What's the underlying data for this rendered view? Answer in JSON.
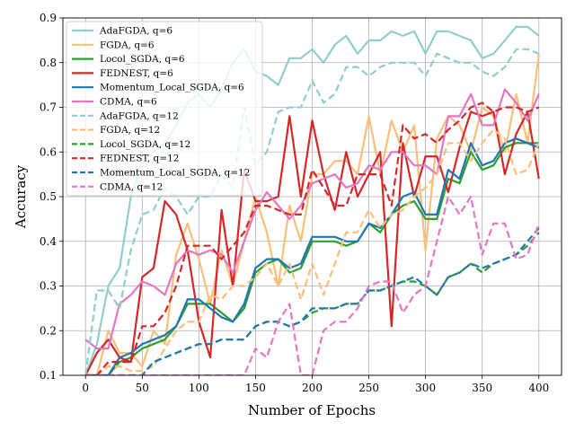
{
  "chart_data": {
    "type": "line",
    "title": "",
    "xlabel": "Number of Epochs",
    "ylabel": "Accuracy",
    "xlim": [
      -20,
      420
    ],
    "ylim": [
      0.1,
      0.9
    ],
    "xticks": [
      0,
      50,
      100,
      150,
      200,
      250,
      300,
      350,
      400
    ],
    "yticks": [
      0.1,
      0.2,
      0.3,
      0.4,
      0.5,
      0.6,
      0.7,
      0.8,
      0.9
    ],
    "xtick_labels": [
      "0",
      "50",
      "100",
      "150",
      "200",
      "250",
      "300",
      "350",
      "400"
    ],
    "ytick_labels": [
      "0.1",
      "0.2",
      "0.3",
      "0.4",
      "0.5",
      "0.6",
      "0.7",
      "0.8",
      "0.9"
    ],
    "grid": true,
    "legend_position": "top-left",
    "x": [
      0,
      10,
      20,
      30,
      40,
      50,
      60,
      70,
      80,
      90,
      100,
      110,
      120,
      130,
      140,
      150,
      160,
      170,
      180,
      190,
      200,
      210,
      220,
      230,
      240,
      250,
      260,
      270,
      280,
      290,
      300,
      310,
      320,
      330,
      340,
      350,
      360,
      370,
      380,
      390,
      400
    ],
    "series": [
      {
        "name": "AdaFGDA, q=6",
        "color": "#8fcfc7",
        "style": "solid",
        "values": [
          0.1,
          0.17,
          0.3,
          0.34,
          0.5,
          0.58,
          0.6,
          0.62,
          0.66,
          0.71,
          0.73,
          0.7,
          0.74,
          0.8,
          0.83,
          0.78,
          0.77,
          0.75,
          0.81,
          0.81,
          0.83,
          0.8,
          0.84,
          0.86,
          0.82,
          0.85,
          0.85,
          0.87,
          0.86,
          0.87,
          0.82,
          0.87,
          0.87,
          0.86,
          0.85,
          0.81,
          0.82,
          0.85,
          0.88,
          0.88,
          0.86
        ]
      },
      {
        "name": "FGDA, q=6",
        "color": "#fbbf7a",
        "style": "solid",
        "values": [
          0.1,
          0.1,
          0.2,
          0.15,
          0.15,
          0.12,
          0.2,
          0.17,
          0.37,
          0.44,
          0.36,
          0.26,
          0.38,
          0.3,
          0.4,
          0.5,
          0.42,
          0.3,
          0.48,
          0.4,
          0.55,
          0.55,
          0.58,
          0.58,
          0.55,
          0.68,
          0.55,
          0.67,
          0.6,
          0.66,
          0.38,
          0.63,
          0.68,
          0.66,
          0.6,
          0.7,
          0.68,
          0.6,
          0.73,
          0.62,
          0.82
        ]
      },
      {
        "name": "Locol_SGDA, q=6",
        "color": "#2ca02c",
        "style": "solid",
        "values": [
          0.1,
          0.1,
          0.1,
          0.13,
          0.14,
          0.16,
          0.17,
          0.18,
          0.21,
          0.26,
          0.26,
          0.26,
          0.24,
          0.22,
          0.25,
          0.33,
          0.35,
          0.36,
          0.33,
          0.34,
          0.4,
          0.4,
          0.4,
          0.39,
          0.4,
          0.44,
          0.42,
          0.46,
          0.48,
          0.49,
          0.45,
          0.45,
          0.54,
          0.53,
          0.6,
          0.56,
          0.57,
          0.61,
          0.62,
          0.62,
          0.62
        ]
      },
      {
        "name": "FEDNEST, q=6",
        "color": "#d62728",
        "style": "solid",
        "values": [
          0.1,
          0.15,
          0.18,
          0.14,
          0.13,
          0.32,
          0.34,
          0.49,
          0.46,
          0.38,
          0.22,
          0.14,
          0.47,
          0.3,
          0.56,
          0.49,
          0.49,
          0.5,
          0.68,
          0.5,
          0.67,
          0.55,
          0.47,
          0.6,
          0.5,
          0.55,
          0.6,
          0.21,
          0.62,
          0.5,
          0.59,
          0.59,
          0.51,
          0.61,
          0.69,
          0.68,
          0.69,
          0.55,
          0.64,
          0.69,
          0.54
        ]
      },
      {
        "name": "Momentum_Local_SGDA, q=6",
        "color": "#1f77b4",
        "style": "solid",
        "values": [
          0.1,
          0.1,
          0.1,
          0.14,
          0.15,
          0.17,
          0.18,
          0.19,
          0.21,
          0.27,
          0.27,
          0.25,
          0.23,
          0.22,
          0.26,
          0.34,
          0.36,
          0.36,
          0.34,
          0.35,
          0.41,
          0.41,
          0.41,
          0.4,
          0.4,
          0.44,
          0.43,
          0.46,
          0.5,
          0.51,
          0.46,
          0.46,
          0.56,
          0.54,
          0.62,
          0.57,
          0.58,
          0.62,
          0.63,
          0.62,
          0.61
        ]
      },
      {
        "name": "CDMA, q=6",
        "color": "#e377c2",
        "style": "solid",
        "values": [
          0.18,
          0.16,
          0.16,
          0.26,
          0.28,
          0.31,
          0.3,
          0.28,
          0.35,
          0.38,
          0.37,
          0.38,
          0.37,
          0.33,
          0.4,
          0.47,
          0.51,
          0.48,
          0.45,
          0.48,
          0.53,
          0.54,
          0.55,
          0.52,
          0.53,
          0.57,
          0.56,
          0.6,
          0.6,
          0.57,
          0.57,
          0.55,
          0.68,
          0.68,
          0.73,
          0.66,
          0.66,
          0.74,
          0.71,
          0.67,
          0.73
        ]
      },
      {
        "name": "AdaFGDA, q=12",
        "color": "#8fcfc7",
        "style": "dashed",
        "values": [
          0.1,
          0.29,
          0.29,
          0.25,
          0.38,
          0.46,
          0.47,
          0.52,
          0.5,
          0.46,
          0.5,
          0.5,
          0.55,
          0.52,
          0.7,
          0.57,
          0.6,
          0.69,
          0.7,
          0.7,
          0.76,
          0.71,
          0.73,
          0.79,
          0.79,
          0.77,
          0.79,
          0.8,
          0.8,
          0.8,
          0.77,
          0.82,
          0.81,
          0.8,
          0.8,
          0.78,
          0.77,
          0.79,
          0.83,
          0.83,
          0.82
        ]
      },
      {
        "name": "FGDA, q=12",
        "color": "#fbbf7a",
        "style": "dashed",
        "values": [
          0.1,
          0.1,
          0.12,
          0.12,
          0.11,
          0.11,
          0.12,
          0.16,
          0.2,
          0.22,
          0.22,
          0.28,
          0.27,
          0.3,
          0.3,
          0.32,
          0.35,
          0.3,
          0.35,
          0.27,
          0.35,
          0.28,
          0.35,
          0.42,
          0.42,
          0.47,
          0.43,
          0.46,
          0.47,
          0.5,
          0.52,
          0.55,
          0.62,
          0.62,
          0.58,
          0.62,
          0.65,
          0.63,
          0.55,
          0.56,
          0.62
        ]
      },
      {
        "name": "Locol_SGDA, q=12",
        "color": "#2ca02c",
        "style": "dashed",
        "values": [
          0.1,
          0.1,
          0.1,
          0.1,
          0.1,
          0.1,
          0.13,
          0.14,
          0.15,
          0.16,
          0.17,
          0.17,
          0.18,
          0.18,
          0.18,
          0.21,
          0.22,
          0.22,
          0.21,
          0.22,
          0.24,
          0.25,
          0.25,
          0.26,
          0.26,
          0.29,
          0.29,
          0.3,
          0.31,
          0.31,
          0.3,
          0.28,
          0.32,
          0.33,
          0.35,
          0.33,
          0.35,
          0.36,
          0.37,
          0.39,
          0.42
        ]
      },
      {
        "name": "FEDNEST, q=12",
        "color": "#d62728",
        "style": "dashed",
        "values": [
          0.1,
          0.1,
          0.13,
          0.13,
          0.13,
          0.21,
          0.21,
          0.24,
          0.3,
          0.39,
          0.39,
          0.39,
          0.36,
          0.39,
          0.42,
          0.48,
          0.48,
          0.47,
          0.46,
          0.46,
          0.56,
          0.52,
          0.48,
          0.48,
          0.55,
          0.55,
          0.55,
          0.48,
          0.66,
          0.63,
          0.64,
          0.62,
          0.65,
          0.67,
          0.7,
          0.71,
          0.69,
          0.7,
          0.7,
          0.69,
          0.7
        ]
      },
      {
        "name": "Momentum_Local_SGDA, q=12",
        "color": "#1f77b4",
        "style": "dashed",
        "values": [
          0.1,
          0.1,
          0.1,
          0.1,
          0.1,
          0.1,
          0.13,
          0.14,
          0.15,
          0.16,
          0.17,
          0.17,
          0.18,
          0.18,
          0.18,
          0.21,
          0.22,
          0.22,
          0.21,
          0.22,
          0.25,
          0.25,
          0.25,
          0.26,
          0.26,
          0.29,
          0.29,
          0.3,
          0.31,
          0.32,
          0.3,
          0.28,
          0.32,
          0.33,
          0.35,
          0.34,
          0.35,
          0.36,
          0.37,
          0.4,
          0.43
        ]
      },
      {
        "name": "CDMA, q=12",
        "color": "#e377c2",
        "style": "dashed",
        "values": [
          0.1,
          0.1,
          0.1,
          0.1,
          0.1,
          0.1,
          0.1,
          0.1,
          0.1,
          0.1,
          0.1,
          0.1,
          0.1,
          0.1,
          0.1,
          0.16,
          0.14,
          0.22,
          0.26,
          0.1,
          0.1,
          0.2,
          0.22,
          0.22,
          0.25,
          0.3,
          0.31,
          0.31,
          0.24,
          0.28,
          0.3,
          0.4,
          0.5,
          0.46,
          0.5,
          0.37,
          0.44,
          0.44,
          0.36,
          0.37,
          0.44
        ]
      }
    ]
  }
}
